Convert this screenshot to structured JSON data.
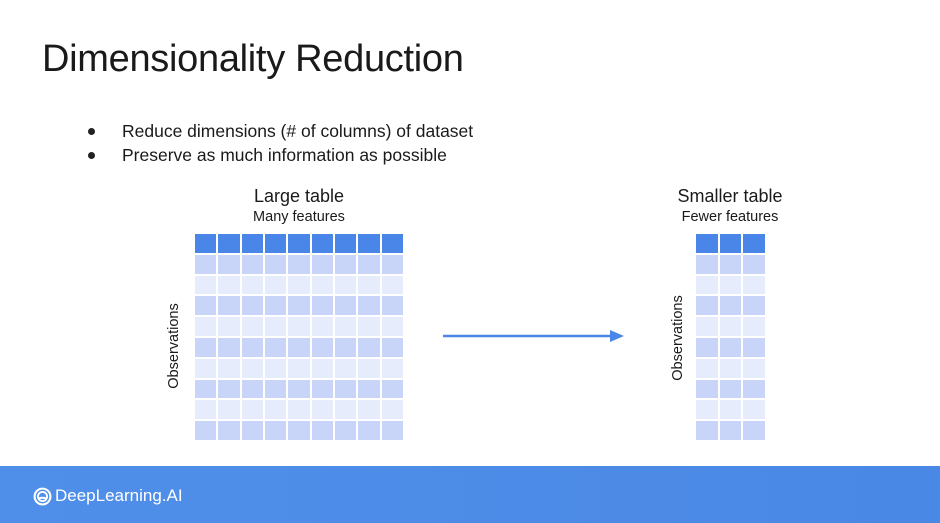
{
  "slide": {
    "title": "Dimensionality Reduction",
    "bullets": [
      "Reduce dimensions (# of columns) of dataset",
      "Preserve as much information as possible"
    ]
  },
  "large_table": {
    "title": "Large table",
    "subtitle": "Many features",
    "axis_label": "Observations",
    "columns": 9,
    "rows": 9
  },
  "small_table": {
    "title": "Smaller table",
    "subtitle": "Fewer features",
    "axis_label": "Observations",
    "columns": 3,
    "rows": 9
  },
  "colors": {
    "header": "#4a86e8",
    "row_dark": "#c8d5f9",
    "row_light": "#e6ecfc",
    "arrow": "#4a86e8",
    "footer": "#4d8be8"
  },
  "footer": {
    "brand": "DeepLearning.AI",
    "logo_icon": "deeplearning-logo-icon"
  }
}
